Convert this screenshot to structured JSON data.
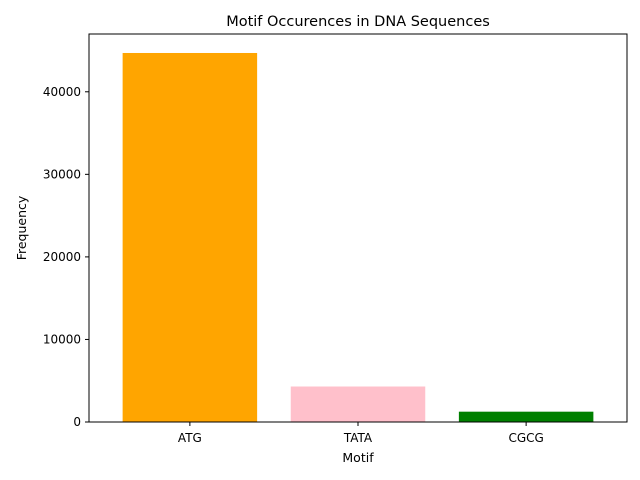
{
  "chart_data": {
    "type": "bar",
    "title": "Motif Occurences in DNA Sequences",
    "xlabel": "Motif",
    "ylabel": "Frequency",
    "categories": [
      "ATG",
      "TATA",
      "CGCG"
    ],
    "values": [
      44700,
      4300,
      1250
    ],
    "colors": [
      "#ffa500",
      "#ffc0cb",
      "#008000"
    ],
    "ylim": [
      0,
      47000
    ],
    "yticks": [
      0,
      10000,
      20000,
      30000,
      40000
    ],
    "ytick_labels": [
      "0",
      "10000",
      "20000",
      "30000",
      "40000"
    ],
    "grid": false,
    "legend": "none"
  }
}
